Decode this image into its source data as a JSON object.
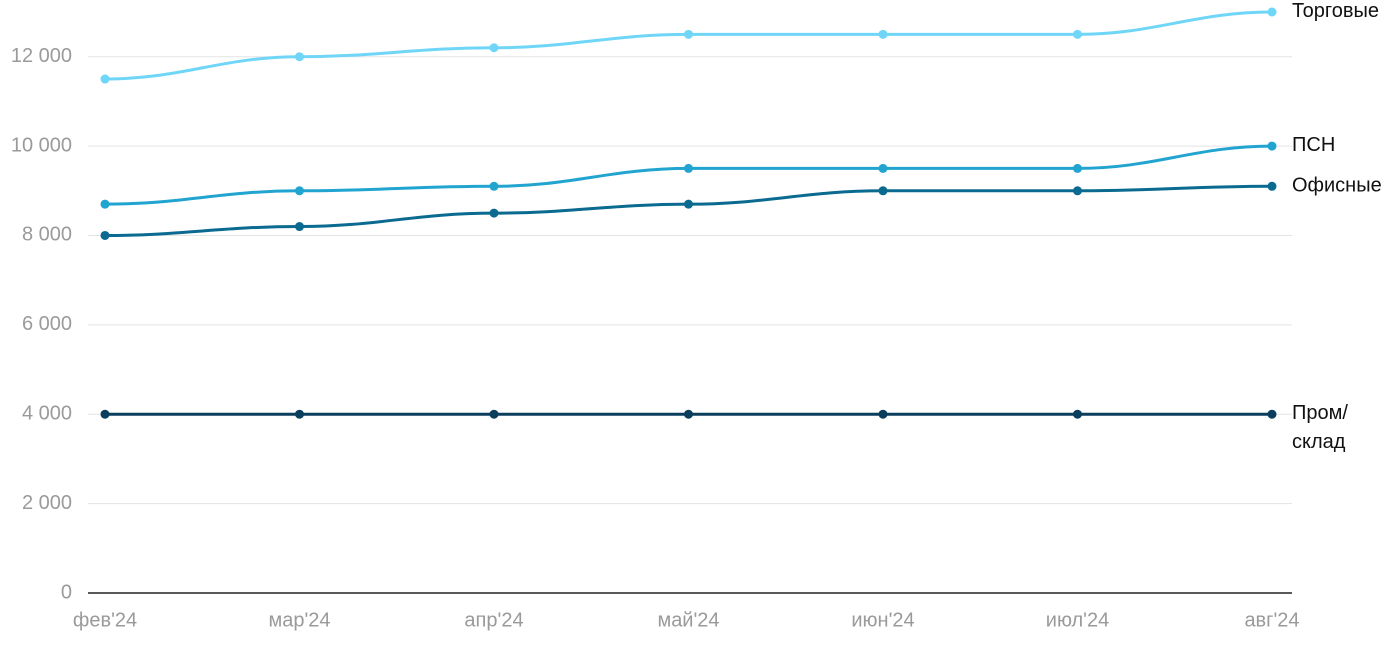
{
  "chart_data": {
    "type": "line",
    "categories": [
      "фев'24",
      "мар'24",
      "апр'24",
      "май'24",
      "июн'24",
      "июл'24",
      "авг'24"
    ],
    "series": [
      {
        "name": "Торговые",
        "color": "#6fd6f7",
        "values": [
          11500,
          12000,
          12200,
          12500,
          12500,
          12500,
          13000
        ]
      },
      {
        "name": "ПСН",
        "color": "#22a4d0",
        "values": [
          8700,
          9000,
          9100,
          9500,
          9500,
          9500,
          10000
        ]
      },
      {
        "name": "Офисные",
        "color": "#0a6a90",
        "values": [
          8000,
          8200,
          8500,
          8700,
          9000,
          9000,
          9100
        ]
      },
      {
        "name": "Пром/склад",
        "color": "#0b3d5c",
        "values": [
          4000,
          4000,
          4000,
          4000,
          4000,
          4000,
          4000
        ]
      }
    ],
    "ylim": [
      0,
      13000
    ],
    "yticks": [
      0,
      {
        "value": 2000,
        "label": "2 000"
      },
      {
        "value": 4000,
        "label": "4 000"
      },
      {
        "value": 6000,
        "label": "6 000"
      },
      {
        "value": 8000,
        "label": "8 000"
      },
      {
        "value": 10000,
        "label": "10 000"
      },
      {
        "value": 12000,
        "label": "12 000"
      }
    ],
    "grid": true
  }
}
